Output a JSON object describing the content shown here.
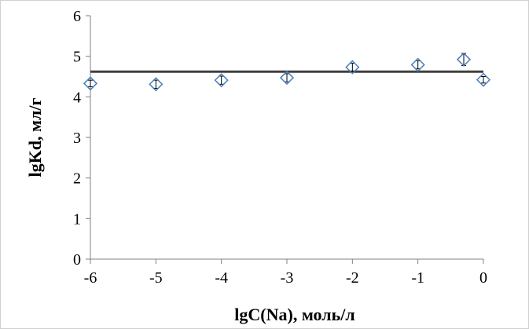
{
  "chart_data": {
    "type": "scatter",
    "xlabel": "lgC(Na), моль/л",
    "ylabel": "lgKd, мл/г",
    "xlim": [
      -6,
      0
    ],
    "ylim": [
      0,
      6
    ],
    "x_ticks": [
      "-6",
      "-5",
      "-4",
      "-3",
      "-2",
      "-1",
      "0"
    ],
    "y_ticks": [
      "0",
      "1",
      "2",
      "3",
      "4",
      "5",
      "6"
    ],
    "grid": false,
    "legend": "none",
    "series": [
      {
        "marker": "diamond",
        "color": "#4a7ebb",
        "points": [
          {
            "x": -6,
            "y": 4.33,
            "err": 0.08
          },
          {
            "x": -5,
            "y": 4.31,
            "err": 0.1
          },
          {
            "x": -4,
            "y": 4.41,
            "err": 0.1
          },
          {
            "x": -3,
            "y": 4.47,
            "err": 0.1
          },
          {
            "x": -2,
            "y": 4.73,
            "err": 0.1
          },
          {
            "x": -1,
            "y": 4.79,
            "err": 0.1
          },
          {
            "x": -0.3,
            "y": 4.92,
            "err": 0.15
          },
          {
            "x": 0,
            "y": 4.42,
            "err": 0.08
          }
        ]
      }
    ],
    "reference_line": {
      "y": 4.62,
      "x_from": -6,
      "x_to": 0,
      "color": "#404040"
    }
  }
}
